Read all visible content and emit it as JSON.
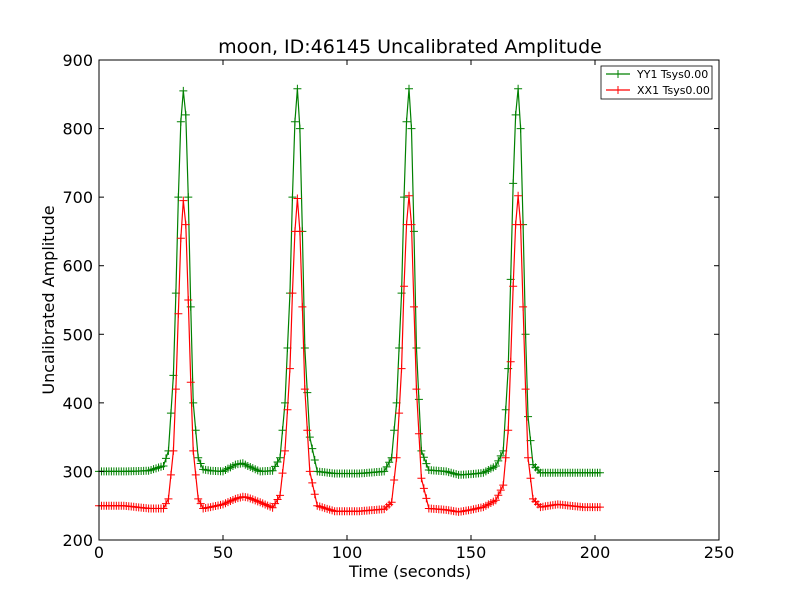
{
  "chart_data": {
    "type": "line",
    "title": "moon, ID:46145 Uncalibrated Amplitude",
    "xlabel": "Time (seconds)",
    "ylabel": "Uncalibrated Amplitude",
    "xlim": [
      0,
      250
    ],
    "ylim": [
      200,
      900
    ],
    "xticks": [
      0,
      50,
      100,
      150,
      200,
      250
    ],
    "yticks": [
      200,
      300,
      400,
      500,
      600,
      700,
      800,
      900
    ],
    "grid": false,
    "legend_position": "top-right",
    "marker": "+",
    "series": [
      {
        "name": "YY1 Tsys0.00",
        "color": "#008000",
        "x": [
          0,
          10,
          20,
          26,
          28,
          30,
          31,
          32,
          33,
          34,
          35,
          36,
          37,
          38,
          40,
          42,
          45,
          50,
          55,
          58,
          60,
          65,
          70,
          73,
          75,
          77,
          78,
          79,
          80,
          81,
          82,
          83,
          85,
          88,
          95,
          105,
          115,
          118,
          120,
          122,
          123,
          124,
          125,
          126,
          127,
          128,
          130,
          133,
          140,
          145,
          150,
          155,
          160,
          163,
          165,
          166,
          167,
          168,
          169,
          170,
          171,
          172,
          173,
          175,
          178,
          185,
          195,
          202
        ],
        "y": [
          300,
          300,
          301,
          308,
          330,
          440,
          560,
          700,
          810,
          855,
          820,
          700,
          540,
          400,
          320,
          303,
          301,
          300,
          310,
          312,
          308,
          300,
          301,
          320,
          400,
          560,
          700,
          810,
          858,
          800,
          650,
          480,
          350,
          300,
          297,
          297,
          300,
          320,
          400,
          560,
          700,
          810,
          858,
          800,
          650,
          480,
          330,
          302,
          300,
          295,
          296,
          298,
          308,
          330,
          450,
          580,
          720,
          820,
          858,
          800,
          660,
          500,
          380,
          310,
          298,
          298,
          298,
          298
        ]
      },
      {
        "name": "XX1 Tsys0.00",
        "color": "#ff0000",
        "x": [
          0,
          10,
          20,
          26,
          28,
          30,
          31,
          32,
          33,
          34,
          35,
          36,
          37,
          38,
          40,
          42,
          45,
          50,
          55,
          58,
          60,
          65,
          70,
          73,
          75,
          77,
          78,
          79,
          80,
          81,
          82,
          83,
          85,
          88,
          95,
          105,
          115,
          118,
          120,
          122,
          123,
          124,
          125,
          126,
          127,
          128,
          130,
          133,
          140,
          145,
          150,
          155,
          160,
          163,
          165,
          166,
          167,
          168,
          169,
          170,
          171,
          172,
          173,
          175,
          178,
          185,
          195,
          202
        ],
        "y": [
          250,
          250,
          246,
          246,
          260,
          330,
          420,
          530,
          640,
          695,
          660,
          550,
          430,
          330,
          260,
          246,
          248,
          252,
          260,
          263,
          262,
          255,
          247,
          265,
          330,
          450,
          560,
          650,
          698,
          650,
          540,
          420,
          300,
          250,
          242,
          242,
          245,
          255,
          320,
          450,
          570,
          660,
          702,
          660,
          540,
          420,
          290,
          246,
          244,
          241,
          244,
          248,
          258,
          280,
          360,
          460,
          570,
          660,
          702,
          660,
          540,
          420,
          320,
          260,
          248,
          252,
          248,
          248
        ]
      }
    ]
  }
}
